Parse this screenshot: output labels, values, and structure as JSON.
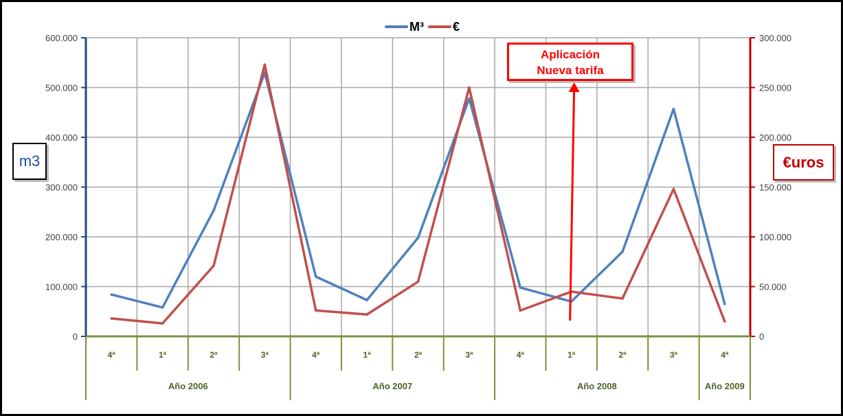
{
  "chart_data": {
    "type": "line",
    "categories": [
      "4ª",
      "1ª",
      "2ª",
      "3ª",
      "4ª",
      "1ª",
      "2ª",
      "3ª",
      "4ª",
      "1ª",
      "2ª",
      "3ª",
      "4ª"
    ],
    "groups": [
      {
        "label": "Año 2006",
        "count": 4
      },
      {
        "label": "Año 2007",
        "count": 4
      },
      {
        "label": "Año 2008",
        "count": 4
      },
      {
        "label": "Año 2009",
        "count": 1
      }
    ],
    "series": [
      {
        "name": "M³",
        "axis": "left",
        "color": "#4f81bd",
        "values": [
          84000,
          58000,
          253000,
          530000,
          120000,
          73000,
          198000,
          478000,
          98000,
          70000,
          170000,
          457000,
          65000
        ]
      },
      {
        "name": "€",
        "axis": "right",
        "color": "#c0504d",
        "values": [
          18000,
          13000,
          71000,
          273000,
          26000,
          22000,
          55000,
          250000,
          26000,
          45000,
          38000,
          148000,
          15000
        ]
      }
    ],
    "ylabel": "m3",
    "y2label": "€uros",
    "ylim": [
      0,
      600000
    ],
    "y2lim": [
      0,
      300000
    ],
    "yticks": [
      "0",
      "100.000",
      "200.000",
      "300.000",
      "400.000",
      "500.000",
      "600.000"
    ],
    "y2ticks": [
      "0",
      "50.000",
      "100.000",
      "150.000",
      "200.000",
      "250.000",
      "300.000"
    ],
    "grid": true,
    "legend": "top-center",
    "annotation": {
      "line1": "Aplicación",
      "line2": "Nueva tarifa",
      "category_index": 9,
      "color": "#ff0000"
    },
    "colors": {
      "left_axis": "#1f497d",
      "right_axis": "#c00000",
      "x_axis": "#77933c",
      "grid": "#a6a6a6",
      "tick_label_x": "#4f6228"
    }
  }
}
